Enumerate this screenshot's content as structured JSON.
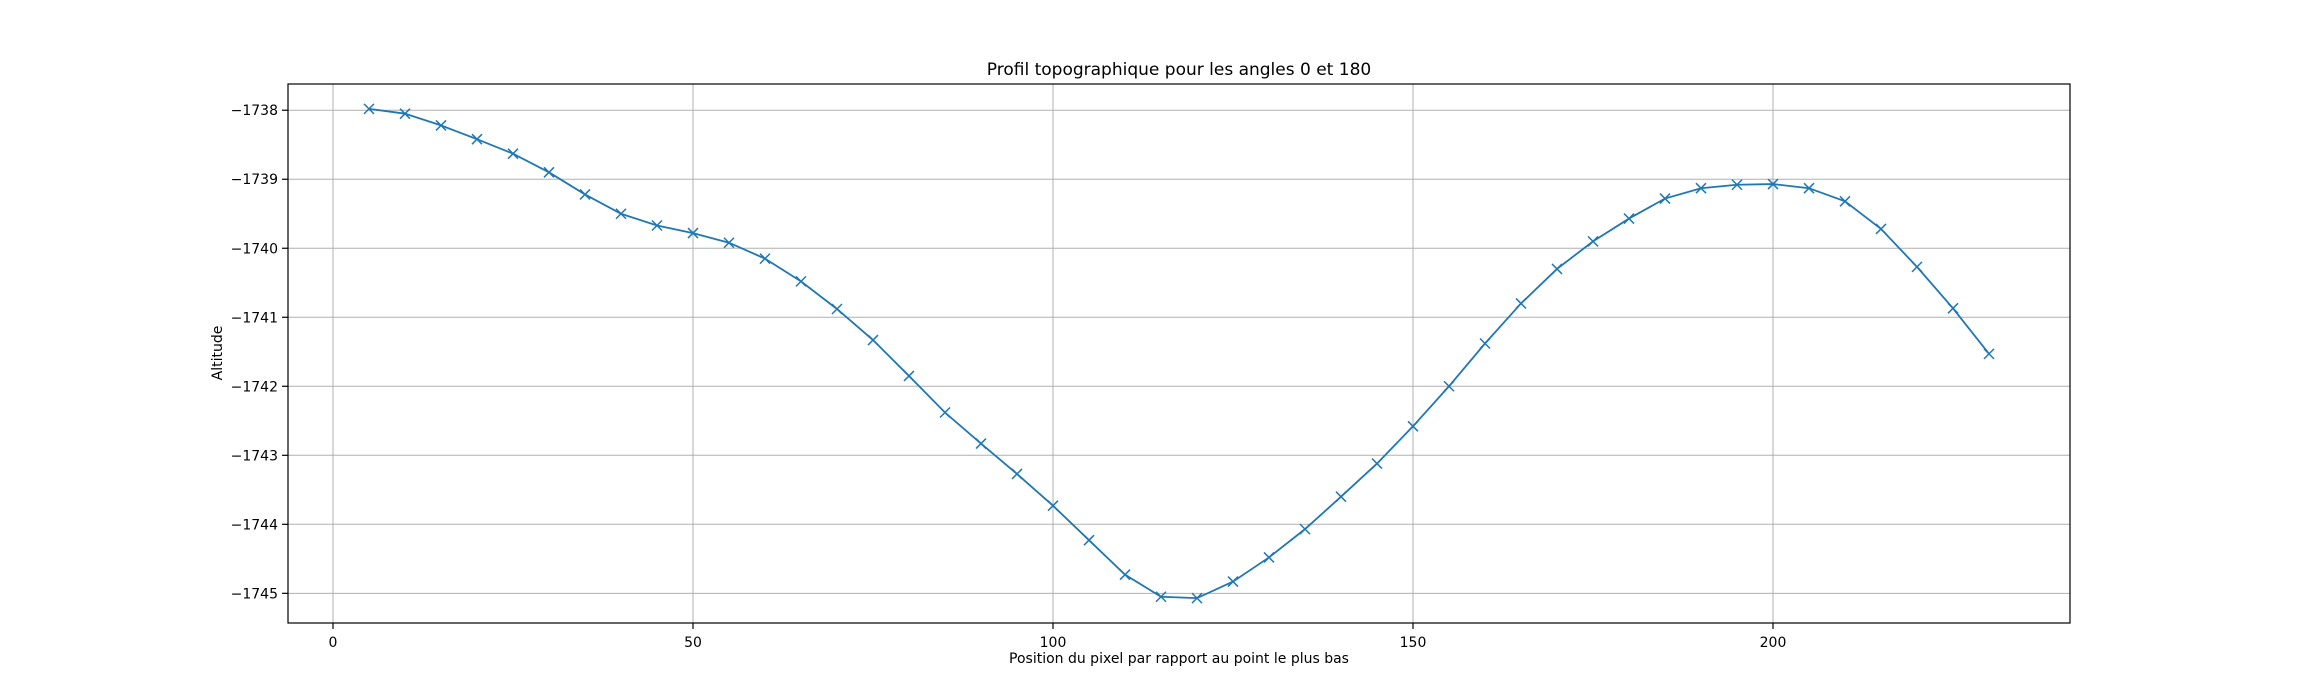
{
  "chart_data": {
    "type": "line",
    "title": "Profil topographique pour les angles 0 et 180",
    "xlabel": "Position du pixel par rapport au point le plus bas",
    "ylabel": "Altitude",
    "xlim": [
      -6.25,
      241.25
    ],
    "ylim": [
      -1745.43,
      -1737.62
    ],
    "xticks": [
      0,
      50,
      100,
      150,
      200
    ],
    "xtick_labels": [
      "0",
      "50",
      "100",
      "150",
      "200"
    ],
    "yticks": [
      -1738,
      -1739,
      -1740,
      -1741,
      -1742,
      -1743,
      -1744,
      -1745
    ],
    "ytick_labels": [
      "−1738",
      "−1739",
      "−1740",
      "−1741",
      "−1742",
      "−1743",
      "−1744",
      "−1745"
    ],
    "grid": true,
    "marker": "x",
    "color": "#1f77b4",
    "x": [
      5,
      10,
      15,
      20,
      25,
      30,
      35,
      40,
      45,
      50,
      55,
      60,
      65,
      70,
      75,
      80,
      85,
      90,
      95,
      100,
      105,
      110,
      115,
      120,
      125,
      130,
      135,
      140,
      145,
      150,
      155,
      160,
      165,
      170,
      175,
      180,
      185,
      190,
      195,
      200,
      205,
      210,
      215,
      220,
      225,
      230
    ],
    "y": [
      -1737.98,
      -1738.05,
      -1738.22,
      -1738.42,
      -1738.63,
      -1738.9,
      -1739.22,
      -1739.5,
      -1739.67,
      -1739.78,
      -1739.92,
      -1740.15,
      -1740.48,
      -1740.88,
      -1741.33,
      -1741.85,
      -1742.38,
      -1742.83,
      -1743.27,
      -1743.73,
      -1744.23,
      -1744.73,
      -1745.05,
      -1745.07,
      -1744.83,
      -1744.48,
      -1744.07,
      -1743.6,
      -1743.12,
      -1742.58,
      -1742.0,
      -1741.38,
      -1740.8,
      -1740.3,
      -1739.9,
      -1739.57,
      -1739.28,
      -1739.13,
      -1739.08,
      -1739.07,
      -1739.13,
      -1739.32,
      -1739.72,
      -1740.27,
      -1740.87,
      -1741.53
    ]
  }
}
